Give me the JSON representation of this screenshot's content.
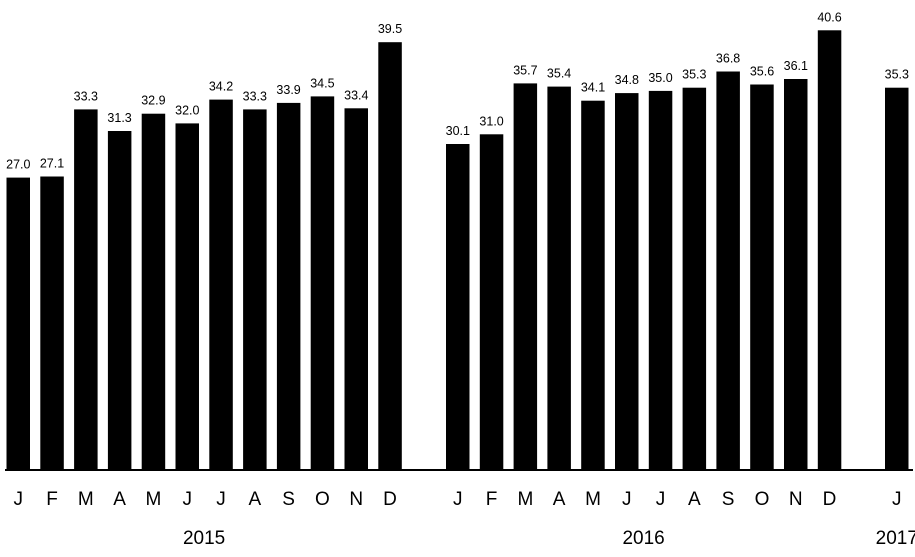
{
  "chart_data": {
    "type": "bar",
    "title": "",
    "xlabel": "",
    "ylabel": "",
    "ylim": [
      0,
      41
    ],
    "grid": false,
    "legend": "none",
    "bar_color": "#000000",
    "groups": [
      {
        "year": "2015",
        "categories": [
          "J",
          "F",
          "M",
          "A",
          "M",
          "J",
          "J",
          "A",
          "S",
          "O",
          "N",
          "D"
        ],
        "values": [
          27.0,
          27.1,
          33.3,
          31.3,
          32.9,
          32.0,
          34.2,
          33.3,
          33.9,
          34.5,
          33.4,
          39.5
        ],
        "value_labels": [
          "27.0",
          "27.1",
          "33.3",
          "31.3",
          "32.9",
          "32.0",
          "34.2",
          "33.3",
          "33.9",
          "34.5",
          "33.4",
          "39.5"
        ]
      },
      {
        "year": "2016",
        "categories": [
          "J",
          "F",
          "M",
          "A",
          "M",
          "J",
          "J",
          "A",
          "S",
          "O",
          "N",
          "D"
        ],
        "values": [
          30.1,
          31.0,
          35.7,
          35.4,
          34.1,
          34.8,
          35.0,
          35.3,
          36.8,
          35.6,
          36.1,
          40.6
        ],
        "value_labels": [
          "30.1",
          "31.0",
          "35.7",
          "35.4",
          "34.1",
          "34.8",
          "35.0",
          "35.3",
          "36.8",
          "35.6",
          "36.1",
          "40.6"
        ]
      },
      {
        "year": "2017",
        "categories": [
          "J"
        ],
        "values": [
          35.3
        ],
        "value_labels": [
          "35.3"
        ]
      }
    ]
  }
}
